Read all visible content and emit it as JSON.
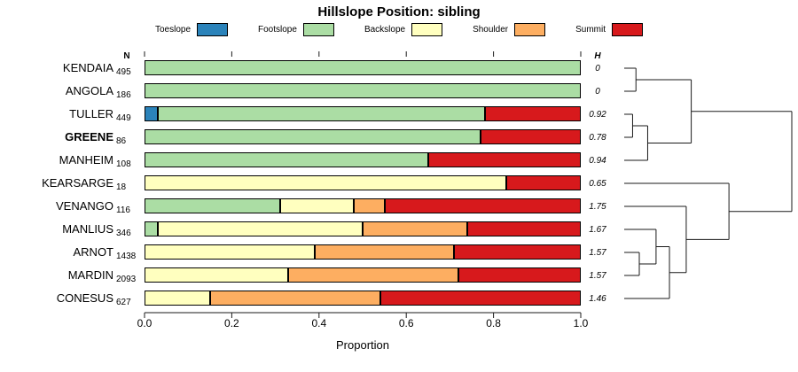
{
  "title": "Hillslope Position: sibling",
  "legend": {
    "items": [
      {
        "label": "Toeslope",
        "color": "#2B83BA"
      },
      {
        "label": "Footslope",
        "color": "#ABDDA4"
      },
      {
        "label": "Backslope",
        "color": "#FFFFBF"
      },
      {
        "label": "Shoulder",
        "color": "#FDAE61"
      },
      {
        "label": "Summit",
        "color": "#D7191C"
      }
    ]
  },
  "columns": {
    "n_header": "N",
    "h_header": "H"
  },
  "xlabel": "Proportion",
  "x_ticks": [
    "0.0",
    "0.2",
    "0.4",
    "0.6",
    "0.8",
    "1.0"
  ],
  "chart_data": {
    "type": "stacked-bar-horizontal",
    "title": "Hillslope Position: sibling",
    "categories": [
      "Toeslope",
      "Footslope",
      "Backslope",
      "Shoulder",
      "Summit"
    ],
    "colors": [
      "#2B83BA",
      "#ABDDA4",
      "#FFFFBF",
      "#FDAE61",
      "#D7191C"
    ],
    "xlim": [
      0,
      1
    ],
    "xlabel": "Proportion",
    "rows": [
      {
        "label": "KENDAIA",
        "n": 495,
        "h": "0",
        "values": [
          0,
          1,
          0,
          0,
          0
        ]
      },
      {
        "label": "ANGOLA",
        "n": 186,
        "h": "0",
        "values": [
          0,
          1,
          0,
          0,
          0
        ]
      },
      {
        "label": "TULLER",
        "n": 449,
        "h": "0.92",
        "values": [
          0.03,
          0.75,
          0,
          0,
          0.22
        ]
      },
      {
        "label": "GREENE",
        "bold": true,
        "n": 86,
        "h": "0.78",
        "values": [
          0,
          0.77,
          0,
          0,
          0.23
        ]
      },
      {
        "label": "MANHEIM",
        "n": 108,
        "h": "0.94",
        "values": [
          0,
          0.65,
          0,
          0,
          0.35
        ]
      },
      {
        "label": "KEARSARGE",
        "n": 18,
        "h": "0.65",
        "values": [
          0,
          0,
          0.83,
          0,
          0.17
        ]
      },
      {
        "label": "VENANGO",
        "n": 116,
        "h": "1.75",
        "values": [
          0,
          0.31,
          0.17,
          0.07,
          0.45
        ]
      },
      {
        "label": "MANLIUS",
        "n": 346,
        "h": "1.67",
        "values": [
          0,
          0.03,
          0.47,
          0.24,
          0.26
        ]
      },
      {
        "label": "ARNOT",
        "n": 1438,
        "h": "1.57",
        "values": [
          0,
          0,
          0.39,
          0.32,
          0.29
        ]
      },
      {
        "label": "MARDIN",
        "n": 2093,
        "h": "1.57",
        "values": [
          0,
          0,
          0.33,
          0.39,
          0.28
        ]
      },
      {
        "label": "CONESUS",
        "n": 627,
        "h": "1.46",
        "values": [
          0,
          0,
          0.15,
          0.39,
          0.46
        ]
      }
    ]
  },
  "dendrogram": {
    "h": 1.0,
    "children": [
      {
        "h": 0.4,
        "children": [
          {
            "h": 0.07,
            "children": [
              {
                "leaf": 0
              },
              {
                "leaf": 1
              }
            ]
          },
          {
            "h": 0.14,
            "children": [
              {
                "h": 0.05,
                "children": [
                  {
                    "leaf": 2
                  },
                  {
                    "leaf": 3
                  }
                ]
              },
              {
                "leaf": 4
              }
            ]
          }
        ]
      },
      {
        "h": 0.625,
        "children": [
          {
            "leaf": 5
          },
          {
            "h": 0.37,
            "children": [
              {
                "leaf": 6
              },
              {
                "h": 0.27,
                "children": [
                  {
                    "h": 0.19,
                    "children": [
                      {
                        "leaf": 7
                      },
                      {
                        "h": 0.09,
                        "children": [
                          {
                            "leaf": 8
                          },
                          {
                            "leaf": 9
                          }
                        ]
                      }
                    ]
                  },
                  {
                    "leaf": 10
                  }
                ]
              }
            ]
          }
        ]
      }
    ]
  }
}
